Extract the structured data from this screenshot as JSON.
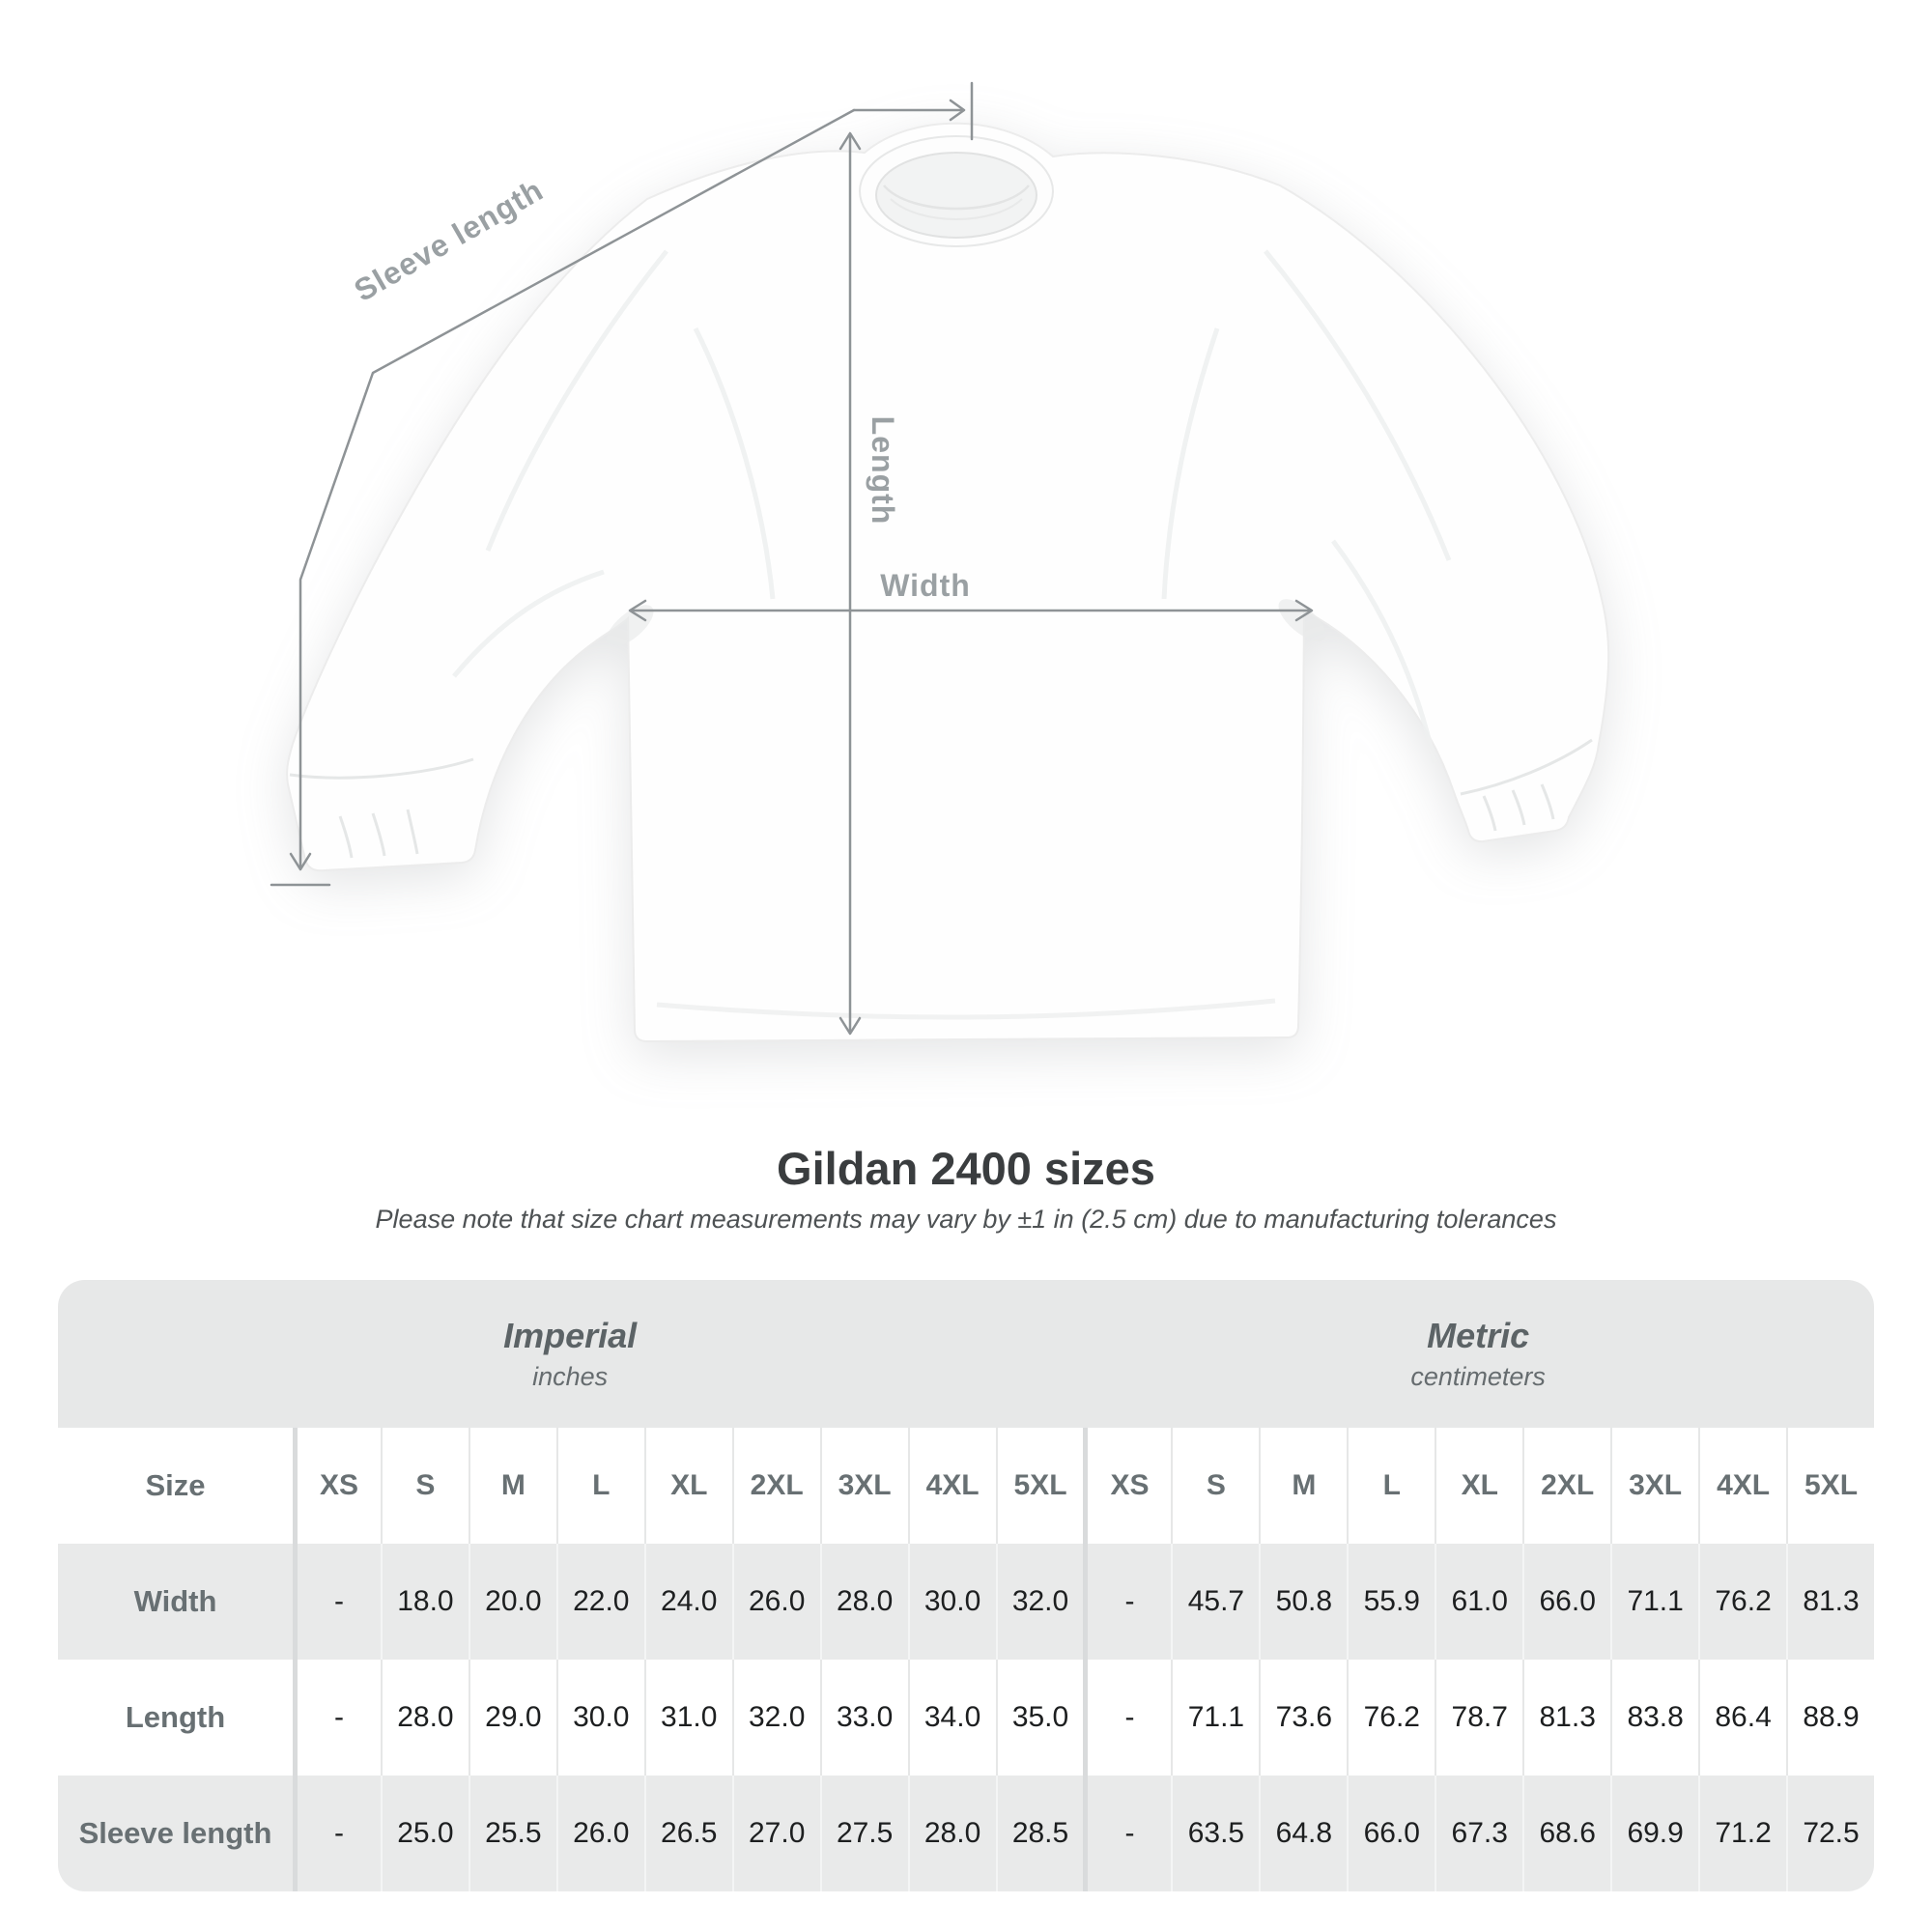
{
  "title": "Gildan 2400 sizes",
  "subtitle": "Please note that size chart measurements may vary by ±1 in (2.5 cm) due to manufacturing tolerances",
  "diagram": {
    "sleeve_length_label": "Sleeve length",
    "length_label": "Length",
    "width_label": "Width"
  },
  "table": {
    "unit_groups": [
      {
        "label": "Imperial",
        "units": "inches"
      },
      {
        "label": "Metric",
        "units": "centimeters"
      }
    ]
  },
  "chart_data": {
    "type": "table",
    "title": "Gildan 2400 sizes",
    "note": "Please note that size chart measurements may vary by ±1 in (2.5 cm) due to manufacturing tolerances",
    "corner_label": "Size",
    "unit_groups": [
      {
        "label": "Imperial",
        "units": "inches"
      },
      {
        "label": "Metric",
        "units": "centimeters"
      }
    ],
    "sizes": [
      "XS",
      "S",
      "M",
      "L",
      "XL",
      "2XL",
      "3XL",
      "4XL",
      "5XL"
    ],
    "rows": [
      {
        "label": "Width",
        "imperial": [
          "-",
          "18.0",
          "20.0",
          "22.0",
          "24.0",
          "26.0",
          "28.0",
          "30.0",
          "32.0"
        ],
        "metric": [
          "-",
          "45.7",
          "50.8",
          "55.9",
          "61.0",
          "66.0",
          "71.1",
          "76.2",
          "81.3"
        ]
      },
      {
        "label": "Length",
        "imperial": [
          "-",
          "28.0",
          "29.0",
          "30.0",
          "31.0",
          "32.0",
          "33.0",
          "34.0",
          "35.0"
        ],
        "metric": [
          "-",
          "71.1",
          "73.6",
          "76.2",
          "78.7",
          "81.3",
          "83.8",
          "86.4",
          "88.9"
        ]
      },
      {
        "label": "Sleeve length",
        "imperial": [
          "-",
          "25.0",
          "25.5",
          "26.0",
          "26.5",
          "27.0",
          "27.5",
          "28.0",
          "28.5"
        ],
        "metric": [
          "-",
          "63.5",
          "64.8",
          "66.0",
          "67.3",
          "68.6",
          "69.9",
          "71.2",
          "72.5"
        ]
      }
    ]
  },
  "colors": {
    "band_gray": "#e7e8e8",
    "row_gray": "#e9eaea",
    "thick_divider": "#d9dbdc",
    "measure_line": "#8e9396",
    "measure_label": "#9aa0a3",
    "header_text": "#687073",
    "value_text": "#1d1f20",
    "title_text": "#3a3d3f"
  }
}
